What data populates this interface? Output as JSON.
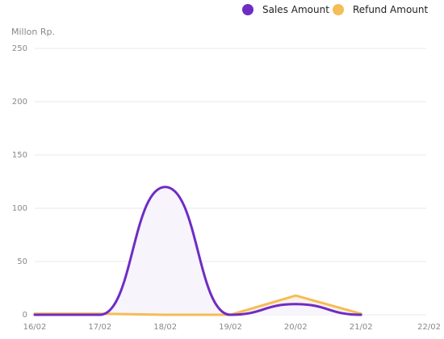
{
  "chart_data": {
    "type": "area",
    "ylabel": "Millon Rp.",
    "x": [
      "16/02",
      "17/02",
      "18/02",
      "19/02",
      "20/02",
      "21/02",
      "22/02"
    ],
    "y_ticks": [
      0,
      50,
      100,
      150,
      200,
      250
    ],
    "ylim": [
      0,
      250
    ],
    "grid": true,
    "legend_position": "top-right",
    "series": [
      {
        "name": "Sales Amount",
        "color": "#6f2cc4",
        "fill": "#f7f4fb",
        "curve": "smooth",
        "values": [
          0,
          0,
          120,
          0,
          10,
          0,
          null
        ]
      },
      {
        "name": "Refund Amount",
        "color": "#f4bd55",
        "fill": "#fbf1e8",
        "curve": "linear",
        "values": [
          1,
          1,
          0,
          0,
          18,
          1,
          null
        ]
      }
    ]
  }
}
